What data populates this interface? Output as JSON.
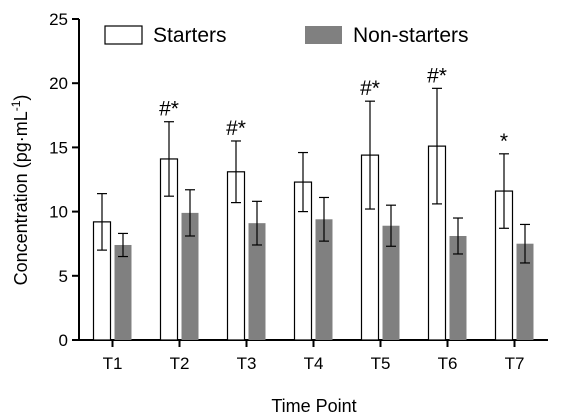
{
  "chart_data": {
    "type": "bar",
    "xlabel": "Time Point",
    "ylabel": "Concentration (pg·mL",
    "ylabel_sup": "-1",
    "ylabel_tail": ")",
    "ylim": [
      0,
      25
    ],
    "yticks": [
      0,
      5,
      10,
      15,
      20,
      25
    ],
    "categories": [
      "T1",
      "T2",
      "T3",
      "T4",
      "T5",
      "T6",
      "T7"
    ],
    "series": [
      {
        "name": "Starters",
        "color": "#ffffff",
        "values": [
          9.2,
          14.1,
          13.1,
          12.3,
          14.4,
          15.1,
          11.6
        ],
        "error": [
          2.2,
          2.9,
          2.4,
          2.3,
          4.2,
          4.5,
          2.9
        ]
      },
      {
        "name": "Non-starters",
        "color": "#808080",
        "values": [
          7.4,
          9.9,
          9.1,
          9.4,
          8.9,
          8.1,
          7.5
        ],
        "error": [
          0.9,
          1.8,
          1.7,
          1.7,
          1.6,
          1.4,
          1.5
        ]
      }
    ],
    "annotations": [
      {
        "category": "T2",
        "text": "#*"
      },
      {
        "category": "T3",
        "text": "#*"
      },
      {
        "category": "T5",
        "text": "#*"
      },
      {
        "category": "T6",
        "text": "#*"
      },
      {
        "category": "T7",
        "text": "*"
      }
    ],
    "legend_position": "top"
  }
}
